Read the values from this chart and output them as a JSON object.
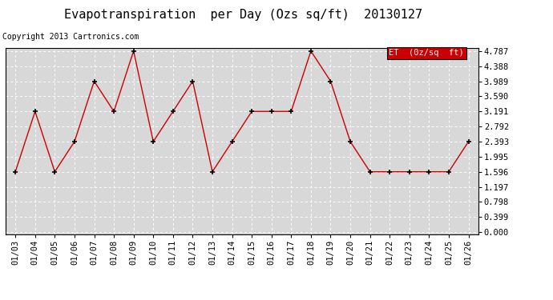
{
  "title": "Evapotranspiration  per Day (Ozs sq/ft)  20130127",
  "copyright": "Copyright 2013 Cartronics.com",
  "legend_label": "ET  (0z/sq  ft)",
  "x_labels": [
    "01/03",
    "01/04",
    "01/05",
    "01/06",
    "01/07",
    "01/08",
    "01/09",
    "01/10",
    "01/11",
    "01/12",
    "01/13",
    "01/14",
    "01/15",
    "01/16",
    "01/17",
    "01/18",
    "01/19",
    "01/20",
    "01/21",
    "01/22",
    "01/23",
    "01/24",
    "01/25",
    "01/26"
  ],
  "y_values": [
    1.596,
    3.191,
    1.596,
    2.393,
    3.989,
    3.191,
    4.787,
    2.393,
    3.191,
    3.989,
    1.596,
    2.393,
    3.191,
    3.191,
    3.191,
    4.787,
    3.989,
    2.393,
    1.596,
    1.596,
    1.596,
    1.596,
    1.596,
    2.393
  ],
  "yticks": [
    0.0,
    0.399,
    0.798,
    1.197,
    1.596,
    1.995,
    2.393,
    2.792,
    3.191,
    3.59,
    3.989,
    4.388,
    4.787
  ],
  "ymin": 0.0,
  "ymax": 4.787,
  "line_color": "#cc0000",
  "marker_color": "#000000",
  "bg_color": "#d8d8d8",
  "legend_bg": "#cc0000",
  "legend_text_color": "#ffffff",
  "grid_color": "#ffffff",
  "title_fontsize": 11,
  "tick_fontsize": 7.5,
  "copyright_fontsize": 7
}
